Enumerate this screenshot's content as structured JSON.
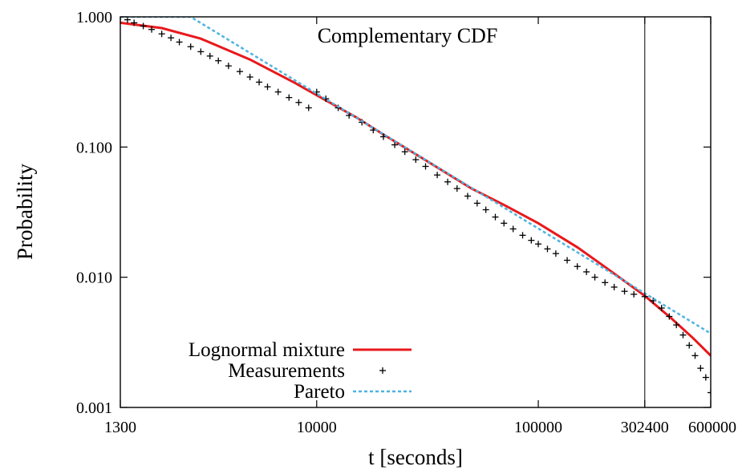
{
  "chart_data": {
    "type": "line",
    "title": "Complementary CDF",
    "xlabel": "t [seconds]",
    "ylabel": "Probability",
    "xscale": "log",
    "yscale": "log",
    "xlim": [
      1300,
      600000
    ],
    "ylim": [
      0.001,
      1.0
    ],
    "xticks": [
      1300,
      10000,
      100000,
      302400,
      600000
    ],
    "xtick_labels": [
      "1300",
      "10000",
      "100000",
      "302400",
      "600000"
    ],
    "yticks": [
      0.001,
      0.01,
      0.1,
      1.0
    ],
    "ytick_labels": [
      "0.001",
      "0.010",
      "0.100",
      "1.000"
    ],
    "vertical_line_x": 302400,
    "grid": false,
    "legend_position": "bottom-left",
    "series": [
      {
        "name": "Lognormal mixture",
        "style": "line",
        "color": "#e8191c",
        "x": [
          1300,
          2000,
          3000,
          5000,
          8000,
          10000,
          15000,
          20000,
          30000,
          50000,
          70000,
          100000,
          150000,
          200000,
          302400,
          400000,
          500000,
          600000
        ],
        "y": [
          0.9,
          0.82,
          0.68,
          0.47,
          0.31,
          0.25,
          0.17,
          0.125,
          0.082,
          0.048,
          0.036,
          0.026,
          0.017,
          0.012,
          0.0072,
          0.0048,
          0.0034,
          0.0025
        ]
      },
      {
        "name": "Measurements",
        "style": "points",
        "color": "#000000",
        "x": [
          1300,
          1400,
          1500,
          1650,
          1800,
          2000,
          2200,
          2400,
          2700,
          3000,
          3300,
          3600,
          4000,
          4500,
          5000,
          5500,
          6000,
          6700,
          7500,
          8300,
          9200,
          10000,
          11000,
          12500,
          14000,
          16000,
          18000,
          20000,
          22500,
          25000,
          28000,
          31000,
          35000,
          39000,
          43000,
          48000,
          53000,
          58000,
          64000,
          70000,
          77000,
          85000,
          93000,
          100000,
          110000,
          120000,
          135000,
          150000,
          165000,
          180000,
          200000,
          220000,
          245000,
          270000,
          302400,
          330000,
          360000,
          390000,
          420000,
          450000,
          480000,
          510000,
          540000,
          570000,
          600000
        ],
        "y": [
          1.0,
          0.95,
          0.9,
          0.85,
          0.8,
          0.74,
          0.69,
          0.64,
          0.59,
          0.54,
          0.5,
          0.46,
          0.42,
          0.38,
          0.345,
          0.315,
          0.29,
          0.265,
          0.24,
          0.22,
          0.2,
          0.265,
          0.235,
          0.2,
          0.175,
          0.155,
          0.135,
          0.12,
          0.104,
          0.092,
          0.08,
          0.071,
          0.061,
          0.054,
          0.048,
          0.042,
          0.037,
          0.033,
          0.029,
          0.026,
          0.0235,
          0.021,
          0.0192,
          0.018,
          0.0165,
          0.0152,
          0.0135,
          0.0121,
          0.011,
          0.01,
          0.0091,
          0.0084,
          0.0078,
          0.0074,
          0.0071,
          0.0066,
          0.0058,
          0.005,
          0.0043,
          0.0036,
          0.003,
          0.0025,
          0.002,
          0.0017,
          0.0013
        ]
      },
      {
        "name": "Pareto",
        "style": "dotted",
        "color": "#4fb3e0",
        "x": [
          1300,
          2700,
          600000
        ],
        "y": [
          1.0,
          1.0,
          0.0037
        ]
      }
    ]
  }
}
